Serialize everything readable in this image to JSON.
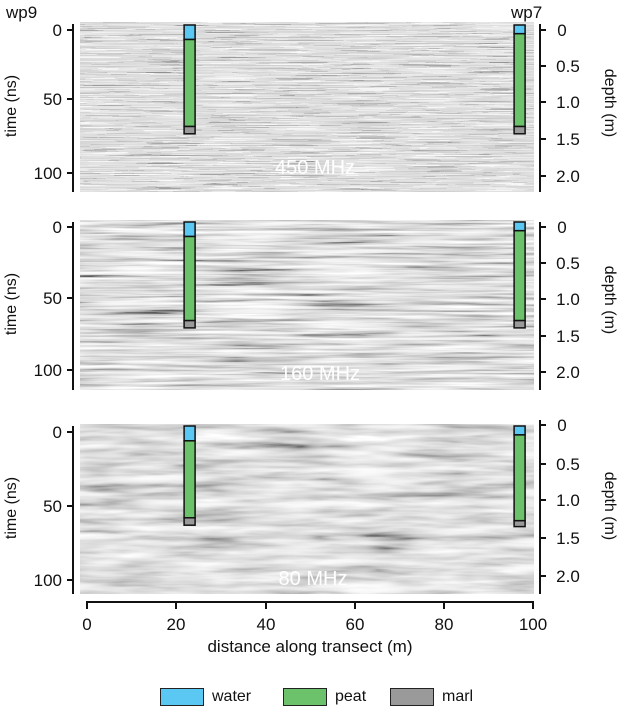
{
  "figure": {
    "well_left": "wp9",
    "well_right": "wp7",
    "y_left_label": "time (ns)",
    "y_right_label": "depth (m)",
    "x_label": "distance along transect (m)",
    "x_ticks": [
      "0",
      "20",
      "40",
      "60",
      "80",
      "100"
    ],
    "time_ticks": [
      "0",
      "50",
      "100"
    ],
    "depth_ticks": [
      "0",
      "0.5",
      "1.0",
      "1.5",
      "2.0"
    ],
    "depth_ticks_80": [
      "0",
      "0.5",
      "1.0",
      "1.5",
      "2.0"
    ],
    "panels": [
      {
        "id": "p450",
        "frequency": "450 MHz"
      },
      {
        "id": "p160",
        "frequency": "160 MHz"
      },
      {
        "id": "p80",
        "frequency": "80 MHz"
      }
    ]
  },
  "legend": [
    {
      "label": "water",
      "color": "#5bc8f3"
    },
    {
      "label": "peat",
      "color": "#6cc26a"
    },
    {
      "label": "marl",
      "color": "#9a9a9a"
    }
  ],
  "colors": {
    "water": "#5bc8f3",
    "peat": "#6cc26a",
    "marl": "#9a9a9a"
  },
  "cores": [
    {
      "name": "wp9",
      "distance_m": 23,
      "panels": {
        "p450": {
          "water": [
            0,
            10
          ],
          "peat": [
            10,
            70
          ],
          "marl": [
            70,
            75
          ]
        },
        "p160": {
          "water": [
            0,
            10
          ],
          "peat": [
            10,
            68
          ],
          "marl": [
            68,
            73
          ]
        },
        "p80": {
          "water": [
            0,
            10
          ],
          "peat": [
            10,
            62
          ],
          "marl": [
            62,
            67
          ]
        }
      }
    },
    {
      "name": "wp7",
      "distance_m": 97,
      "panels": {
        "p450": {
          "water": [
            0,
            6
          ],
          "peat": [
            6,
            70
          ],
          "marl": [
            70,
            75
          ]
        },
        "p160": {
          "water": [
            0,
            6
          ],
          "peat": [
            6,
            68
          ],
          "marl": [
            68,
            73
          ]
        },
        "p80": {
          "water": [
            0,
            6
          ],
          "peat": [
            6,
            64
          ],
          "marl": [
            64,
            68
          ]
        }
      }
    }
  ]
}
